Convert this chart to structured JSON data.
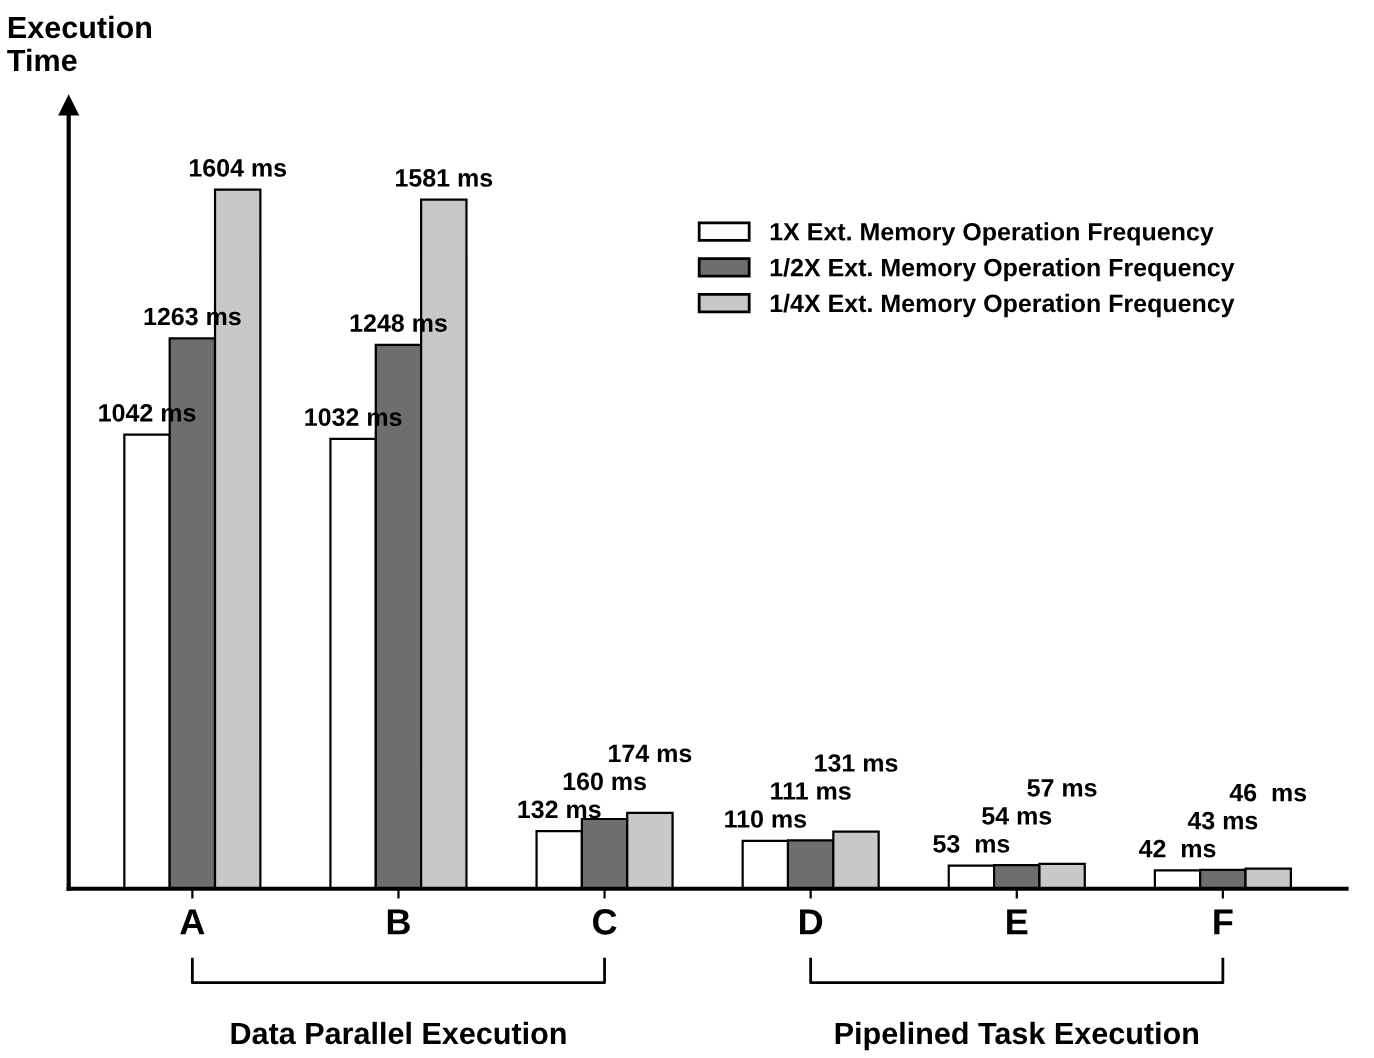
{
  "chart_data": {
    "type": "bar",
    "ylabel": "Execution\nTime",
    "categories": [
      "A",
      "B",
      "C",
      "D",
      "E",
      "F"
    ],
    "series": [
      {
        "name": "1X Ext. Memory Operation Frequency",
        "color": "#ffffff",
        "values": [
          1042,
          1032,
          132,
          110,
          53,
          42
        ],
        "value_labels": [
          "1042 ms",
          "1032 ms",
          "132 ms",
          "110 ms",
          "53  ms",
          "42  ms"
        ]
      },
      {
        "name": "1/2X Ext. Memory Operation Frequency",
        "color": "#6e6e6e",
        "values": [
          1263,
          1248,
          160,
          111,
          54,
          43
        ],
        "value_labels": [
          "1263 ms",
          "1248 ms",
          "160 ms",
          "111 ms",
          "54 ms",
          "43 ms"
        ]
      },
      {
        "name": "1/4X Ext. Memory Operation Frequency",
        "color": "#c8c8c8",
        "values": [
          1604,
          1581,
          174,
          131,
          57,
          46
        ],
        "value_labels": [
          "1604 ms",
          "1581 ms",
          "174 ms",
          "131 ms",
          "57 ms",
          "46  ms"
        ]
      }
    ],
    "annotations": [
      "Data Parallel Execution",
      "Pipelined Task Execution"
    ],
    "legend": "top right",
    "grid": false,
    "tick_labels": "x"
  }
}
